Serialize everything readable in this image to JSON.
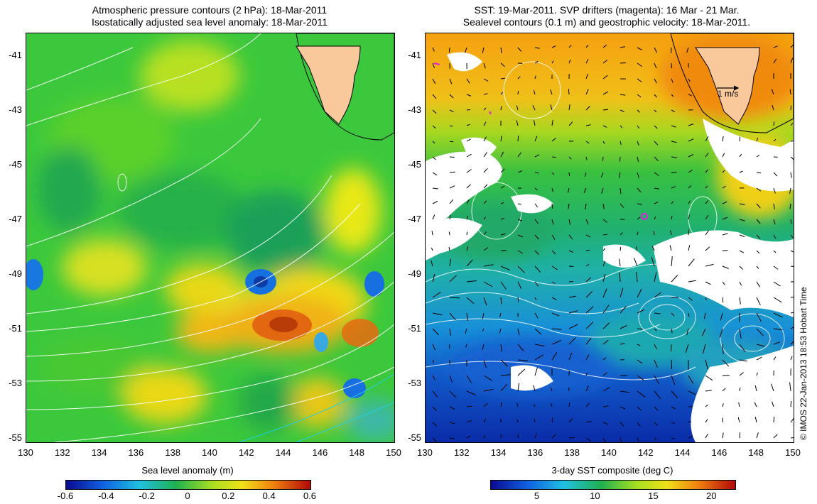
{
  "left_panel": {
    "title_line1": "Atmospheric pressure contours (2 hPa): 18-Mar-2011",
    "title_line2": "Isostatically adjusted sea level anomaly: 18-Mar-2011",
    "x_ticks": [
      "130",
      "132",
      "134",
      "136",
      "138",
      "140",
      "142",
      "144",
      "146",
      "148",
      "150"
    ],
    "y_ticks": [
      "-41",
      "-43",
      "-45",
      "-47",
      "-49",
      "-51",
      "-53",
      "-55"
    ],
    "colorbar": {
      "label": "Sea level anomaly (m)",
      "ticks": [
        "-0.6",
        "-0.4",
        "-0.2",
        "0",
        "0.2",
        "0.4",
        "0.6"
      ],
      "range": [
        -0.6,
        0.6
      ]
    }
  },
  "right_panel": {
    "title_line1": "SST: 19-Mar-2011. SVP drifters (magenta): 16 Mar - 21 Mar.",
    "title_line2": "Sealevel contours (0.1 m) and geostrophic velocity: 18-Mar-2011.",
    "x_ticks": [
      "130",
      "132",
      "134",
      "136",
      "138",
      "140",
      "142",
      "144",
      "146",
      "148",
      "150"
    ],
    "y_ticks": [
      "-41",
      "-43",
      "-45",
      "-47",
      "-49",
      "-51",
      "-53",
      "-55"
    ],
    "scale_arrow_label": "1 m/s",
    "colorbar": {
      "label": "3-day SST composite (deg C)",
      "ticks": [
        "5",
        "10",
        "15",
        "20"
      ],
      "range": [
        1,
        22
      ]
    }
  },
  "credit": "© IMOS 22-Jan-2013 18:53 Hobart Time",
  "colors": {
    "land": "#f9c99b",
    "sla_high": "#c84a0a",
    "sla_low": "#1670e0",
    "sst_warm": "#f59a10",
    "sst_cold": "#0a2ca8",
    "drifter": "#e020e0"
  }
}
